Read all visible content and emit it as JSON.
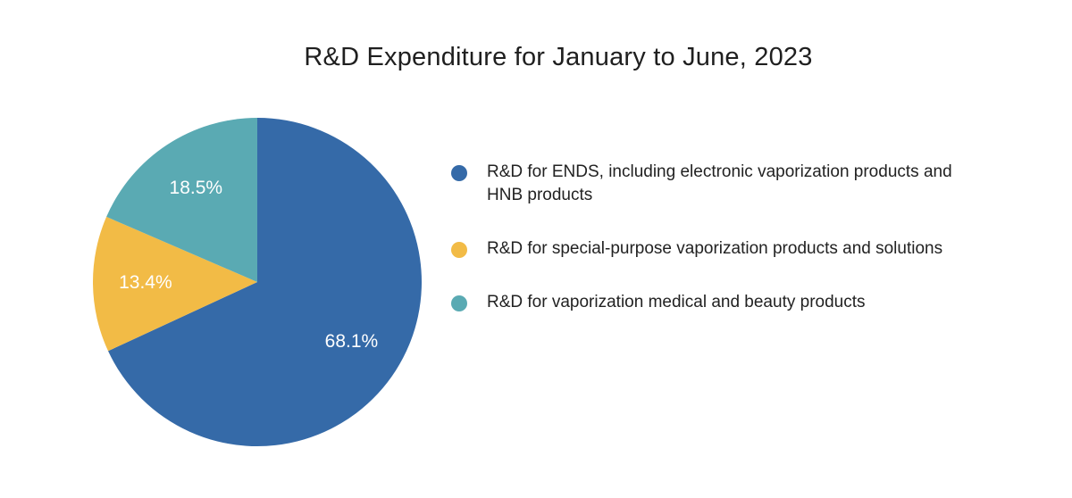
{
  "chart_data": {
    "type": "pie",
    "title": "R&D Expenditure for January to June, 2023",
    "slices": [
      {
        "label": "R&D for ENDS, including electronic vaporization products and HNB products",
        "value": 68.1,
        "display": "68.1%",
        "color": "#356aa8"
      },
      {
        "label": "R&D for special-purpose vaporization products and solutions",
        "value": 13.4,
        "display": "13.4%",
        "color": "#f2bb46"
      },
      {
        "label": "R&D for vaporization medical and beauty products",
        "value": 18.5,
        "display": "18.5%",
        "color": "#5aaab3"
      }
    ],
    "legend_position": "right"
  }
}
